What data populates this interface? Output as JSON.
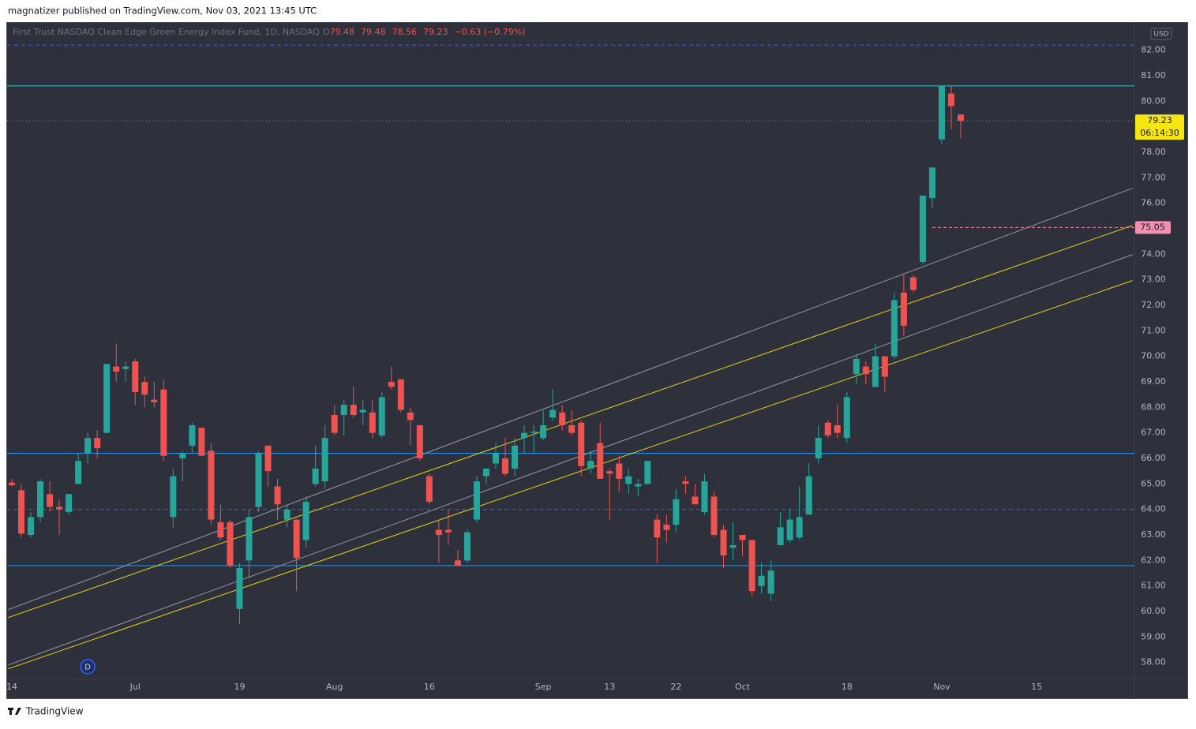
{
  "header": "magnatizer published on TradingView.com, Nov 03, 2021 13:45 UTC",
  "footer": "TradingView",
  "chart_data": {
    "type": "candlestick",
    "title": "First Trust NASDAQ Clean Edge Green Energy Index Fund, 1D, NASDAQ",
    "legend_values": [
      "O",
      "79.48",
      "79.48",
      "78.56",
      "79.23",
      "−0.63 (−0.79%)"
    ],
    "currency": "USD",
    "up_color": "#26a69a",
    "down_color": "#ef5350",
    "grid": false,
    "categories": [
      "14",
      null,
      null,
      null,
      null,
      null,
      null,
      null,
      null,
      null,
      null,
      null,
      null,
      "Jul",
      null,
      null,
      null,
      null,
      null,
      null,
      null,
      null,
      null,
      null,
      "19",
      null,
      null,
      null,
      null,
      null,
      null,
      null,
      null,
      null,
      "Aug",
      null,
      null,
      null,
      null,
      null,
      null,
      null,
      null,
      null,
      "16",
      null,
      null,
      null,
      null,
      null,
      null,
      null,
      null,
      null,
      null,
      null,
      "Sep",
      null,
      null,
      null,
      null,
      null,
      null,
      "13",
      null,
      null,
      null,
      null,
      null,
      null,
      "22",
      null,
      null,
      null,
      null,
      null,
      null,
      "Oct",
      null,
      null,
      null,
      null,
      null,
      null,
      null,
      null,
      null,
      null,
      "18",
      null,
      null,
      null,
      null,
      null,
      null,
      null,
      null,
      null,
      "Nov",
      null,
      null,
      null,
      null,
      null,
      null,
      null,
      null,
      null,
      "15"
    ],
    "ohlc": [
      [
        65.05,
        65.2,
        64.9,
        64.95
      ],
      [
        64.75,
        65.0,
        62.9,
        63.05
      ],
      [
        63.0,
        63.9,
        62.9,
        63.7
      ],
      [
        63.7,
        65.2,
        63.5,
        65.1
      ],
      [
        64.6,
        65.1,
        63.9,
        64.1
      ],
      [
        64.1,
        64.4,
        63.0,
        64.0
      ],
      [
        63.9,
        64.6,
        63.8,
        64.6
      ],
      [
        65.0,
        66.2,
        65.0,
        65.9
      ],
      [
        66.2,
        67.0,
        65.8,
        66.8
      ],
      [
        66.8,
        67.1,
        66.0,
        66.4
      ],
      [
        67.0,
        69.7,
        67.0,
        69.7
      ],
      [
        69.6,
        70.5,
        69.0,
        69.4
      ],
      [
        69.5,
        69.8,
        69.0,
        69.6
      ],
      [
        69.8,
        69.9,
        68.1,
        68.6
      ],
      [
        69.0,
        69.2,
        68.0,
        68.5
      ],
      [
        68.3,
        69.0,
        68.0,
        68.2
      ],
      [
        68.7,
        69.1,
        65.9,
        66.1
      ],
      [
        63.7,
        65.6,
        63.3,
        65.3
      ],
      [
        66.0,
        66.3,
        65.1,
        66.2
      ],
      [
        66.5,
        67.4,
        66.2,
        67.3
      ],
      [
        67.2,
        67.2,
        66.1,
        66.1
      ],
      [
        66.3,
        66.6,
        63.4,
        63.6
      ],
      [
        63.5,
        64.2,
        62.8,
        62.9
      ],
      [
        63.5,
        63.6,
        61.7,
        61.8
      ],
      [
        60.1,
        61.9,
        59.5,
        61.7
      ],
      [
        62.0,
        64.0,
        61.3,
        63.7
      ],
      [
        64.1,
        66.3,
        63.9,
        66.2
      ],
      [
        66.5,
        66.5,
        64.9,
        65.5
      ],
      [
        64.9,
        65.2,
        63.6,
        64.2
      ],
      [
        63.6,
        64.2,
        63.3,
        64.0
      ],
      [
        63.6,
        63.6,
        60.8,
        62.1
      ],
      [
        62.8,
        64.5,
        62.5,
        64.3
      ],
      [
        65.0,
        66.5,
        64.9,
        65.6
      ],
      [
        65.1,
        67.3,
        64.8,
        66.8
      ],
      [
        67.7,
        68.1,
        66.9,
        67.0
      ],
      [
        67.7,
        68.3,
        66.9,
        68.1
      ],
      [
        68.1,
        68.8,
        67.6,
        67.7
      ],
      [
        67.8,
        68.3,
        67.3,
        67.9
      ],
      [
        67.8,
        68.3,
        66.8,
        67.0
      ],
      [
        66.9,
        68.6,
        66.8,
        68.4
      ],
      [
        69.0,
        69.6,
        68.7,
        68.8
      ],
      [
        69.1,
        69.1,
        67.8,
        67.9
      ],
      [
        67.8,
        68.0,
        66.5,
        67.5
      ],
      [
        67.3,
        67.3,
        65.9,
        66.0
      ],
      [
        65.3,
        65.4,
        64.2,
        64.3
      ],
      [
        63.2,
        63.6,
        61.9,
        63.0
      ],
      [
        63.2,
        64.0,
        62.6,
        63.1
      ],
      [
        62.0,
        62.4,
        61.8,
        61.8
      ],
      [
        62.0,
        63.2,
        61.9,
        63.1
      ],
      [
        63.6,
        65.3,
        63.5,
        65.1
      ],
      [
        65.3,
        65.6,
        65.0,
        65.6
      ],
      [
        65.8,
        66.6,
        65.6,
        66.2
      ],
      [
        66.0,
        66.8,
        65.3,
        65.4
      ],
      [
        65.6,
        66.8,
        65.3,
        66.5
      ],
      [
        66.8,
        67.3,
        66.2,
        67.0
      ],
      [
        67.0,
        67.3,
        66.2,
        67.05
      ],
      [
        66.8,
        67.9,
        66.7,
        67.3
      ],
      [
        67.6,
        68.7,
        67.5,
        67.9
      ],
      [
        67.8,
        68.1,
        67.1,
        67.3
      ],
      [
        67.3,
        67.9,
        66.9,
        67.0
      ],
      [
        67.4,
        67.5,
        65.3,
        65.7
      ],
      [
        65.6,
        66.3,
        65.4,
        65.9
      ],
      [
        66.6,
        67.4,
        65.2,
        65.2
      ],
      [
        65.5,
        65.6,
        63.6,
        65.4
      ],
      [
        65.8,
        66.1,
        64.7,
        65.2
      ],
      [
        65.0,
        65.6,
        64.6,
        65.3
      ],
      [
        64.9,
        65.2,
        64.5,
        65.0
      ],
      [
        65.0,
        65.9,
        65.0,
        65.9
      ],
      [
        63.6,
        63.8,
        61.9,
        62.9
      ],
      [
        63.4,
        63.8,
        62.7,
        63.2
      ],
      [
        63.4,
        64.8,
        63.1,
        64.4
      ],
      [
        65.1,
        65.3,
        64.6,
        65.0
      ],
      [
        64.5,
        65.0,
        64.2,
        64.2
      ],
      [
        63.9,
        65.4,
        63.8,
        65.1
      ],
      [
        64.5,
        64.7,
        62.9,
        63.0
      ],
      [
        63.2,
        63.4,
        61.7,
        62.2
      ],
      [
        62.5,
        63.5,
        62.0,
        62.6
      ],
      [
        63.0,
        63.0,
        62.2,
        62.8
      ],
      [
        62.8,
        62.8,
        60.6,
        60.8
      ],
      [
        61.0,
        61.9,
        60.7,
        61.4
      ],
      [
        60.7,
        62.0,
        60.4,
        61.6
      ],
      [
        62.6,
        63.9,
        62.6,
        63.3
      ],
      [
        62.8,
        64.0,
        62.7,
        63.6
      ],
      [
        62.9,
        64.9,
        62.8,
        63.7
      ],
      [
        63.8,
        65.8,
        63.8,
        65.3
      ],
      [
        66.0,
        67.3,
        65.8,
        66.8
      ],
      [
        67.4,
        67.5,
        66.8,
        66.9
      ],
      [
        67.3,
        68.1,
        66.8,
        67.0
      ],
      [
        66.8,
        68.6,
        66.6,
        68.4
      ],
      [
        69.3,
        70.1,
        68.9,
        69.9
      ],
      [
        69.6,
        69.8,
        68.9,
        69.3
      ],
      [
        68.8,
        70.5,
        68.8,
        70.0
      ],
      [
        70.0,
        70.0,
        68.6,
        69.2
      ],
      [
        70.0,
        72.5,
        69.9,
        72.2
      ],
      [
        72.5,
        73.2,
        70.8,
        71.2
      ],
      [
        73.1,
        73.2,
        72.5,
        72.6
      ],
      [
        73.7,
        76.3,
        73.6,
        76.3
      ],
      [
        76.2,
        77.4,
        75.8,
        77.4
      ],
      [
        78.5,
        80.6,
        78.3,
        80.6
      ],
      [
        80.3,
        80.6,
        78.9,
        79.8
      ],
      [
        79.48,
        79.48,
        78.56,
        79.23
      ],
      null,
      null,
      null,
      null,
      null,
      null,
      null,
      null
    ],
    "ylim": [
      56.6,
      83.1
    ],
    "yticks": [
      {
        "value": 58,
        "label": "58.00"
      },
      {
        "value": 59,
        "label": "59.00"
      },
      {
        "value": 60,
        "label": "60.00"
      },
      {
        "value": 61,
        "label": "61.00"
      },
      {
        "value": 62,
        "label": "62.00"
      },
      {
        "value": 63,
        "label": "63.00"
      },
      {
        "value": 64,
        "label": "64.00"
      },
      {
        "value": 65,
        "label": "65.00"
      },
      {
        "value": 66,
        "label": "66.00"
      },
      {
        "value": 67,
        "label": "67.00"
      },
      {
        "value": 68,
        "label": "68.00"
      },
      {
        "value": 69,
        "label": "69.00"
      },
      {
        "value": 70,
        "label": "70.00"
      },
      {
        "value": 71,
        "label": "71.00"
      },
      {
        "value": 72,
        "label": "72.00"
      },
      {
        "value": 73,
        "label": "73.00"
      },
      {
        "value": 74,
        "label": "74.00"
      },
      {
        "value": 75,
        "label": "75.00"
      },
      {
        "value": 76,
        "label": "76.00"
      },
      {
        "value": 77,
        "label": "77.00"
      },
      {
        "value": 78,
        "label": "78.00"
      },
      {
        "value": 79,
        "label": "79.00"
      },
      {
        "value": 80,
        "label": "80.00"
      },
      {
        "value": 81,
        "label": "81.00"
      },
      {
        "value": 82,
        "label": "82.00"
      }
    ],
    "levels": [
      {
        "value": 82.2,
        "color": "#2962ff",
        "dashed": true
      },
      {
        "value": 80.6,
        "color": "#26c6da",
        "dashed": false
      },
      {
        "value": 66.2,
        "color": "#2196f3",
        "dashed": false
      },
      {
        "value": 64.0,
        "color": "#2962ff",
        "dashed": true
      },
      {
        "value": 61.8,
        "color": "#2196f3",
        "dashed": false
      }
    ],
    "trendlines": [
      {
        "color": "#9598a1",
        "x": [
          -0.4,
          118.1
        ],
        "y": [
          60.07,
          76.59
        ]
      },
      {
        "color": "#e5d600",
        "x": [
          -0.4,
          118.1
        ],
        "y": [
          59.76,
          75.13
        ]
      },
      {
        "color": "#9598a1",
        "x": [
          -0.4,
          118.1
        ],
        "y": [
          57.9,
          73.99
        ]
      },
      {
        "color": "#e5d600",
        "x": [
          -0.4,
          118.1
        ],
        "y": [
          57.75,
          72.97
        ]
      }
    ],
    "last_price": {
      "value": 79.23,
      "label": "79.23",
      "countdown": "06:14:30",
      "color": "#f5e60f"
    },
    "price_line": {
      "value": 75.05,
      "label": "75.05",
      "from": 97,
      "color": "#f48fb1"
    },
    "markers": [
      {
        "label": "D",
        "index": 8
      }
    ]
  }
}
